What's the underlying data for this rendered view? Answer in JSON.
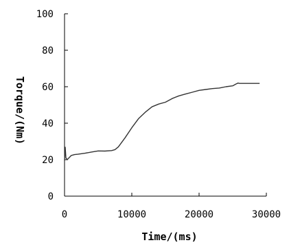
{
  "chart_data": {
    "type": "line",
    "xlabel": "Time/(ms)",
    "ylabel": "Torque/(Nm)",
    "xlim": [
      0,
      30000
    ],
    "ylim": [
      0,
      100
    ],
    "xticks": [
      0,
      10000,
      20000,
      30000
    ],
    "yticks": [
      0,
      20,
      40,
      60,
      80,
      100
    ],
    "grid": false,
    "legend": "none",
    "line_color": "#333333",
    "series": [
      {
        "x": [
          0,
          100,
          200,
          400,
          800,
          1000,
          1500,
          2000,
          3000,
          4000,
          5000,
          6000,
          7000,
          7500,
          8000,
          8500,
          9000,
          10000,
          11000,
          12000,
          13000,
          14000,
          15000,
          16000,
          17000,
          18000,
          19000,
          20000,
          21000,
          22000,
          23000,
          24000,
          25000,
          25500,
          25800,
          26000,
          27000,
          28000,
          29000
        ],
        "y": [
          19.5,
          26.8,
          21,
          20,
          21.5,
          22.3,
          22.8,
          23,
          23.5,
          24.2,
          24.8,
          24.7,
          25,
          25.5,
          27,
          29.5,
          32,
          37.5,
          42.5,
          46,
          49,
          50.5,
          51.5,
          53.5,
          55,
          56,
          57,
          58,
          58.5,
          59,
          59.3,
          60,
          60.5,
          61.5,
          62,
          61.8,
          61.8,
          61.8,
          61.8
        ]
      }
    ]
  }
}
